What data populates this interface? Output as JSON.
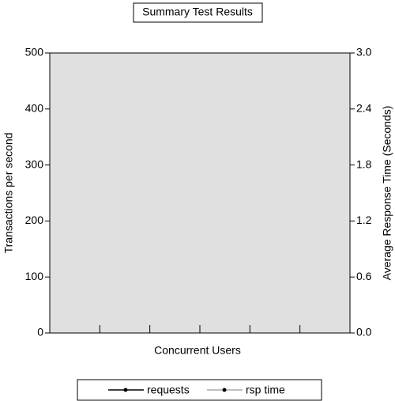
{
  "chart_data": {
    "type": "line",
    "title": "Summary Test Results",
    "x_label": "Concurrent Users",
    "y_label": "Transactions per second",
    "y2_label": "Average Response Time (Seconds)",
    "categories": [
      null,
      null,
      null,
      null,
      null,
      null
    ],
    "series": [
      {
        "name": "requests",
        "color": "#000000",
        "values": [
          null,
          null,
          null,
          null,
          null,
          null
        ]
      },
      {
        "name": "rsp time",
        "color": "#aaaaaa",
        "axis": "y2",
        "values": [
          null,
          null,
          null,
          null,
          null,
          null
        ]
      }
    ],
    "ylim": [
      0,
      500
    ],
    "yticks": [
      0,
      100,
      200,
      300,
      400,
      500
    ],
    "y2lim": [
      0,
      3
    ],
    "y2ticks": [
      {
        "value": 0,
        "label": "0.0"
      },
      0.6,
      1.2,
      1.8,
      2.4,
      {
        "value": 3,
        "label": "3.0"
      }
    ],
    "legend": "bottom"
  }
}
